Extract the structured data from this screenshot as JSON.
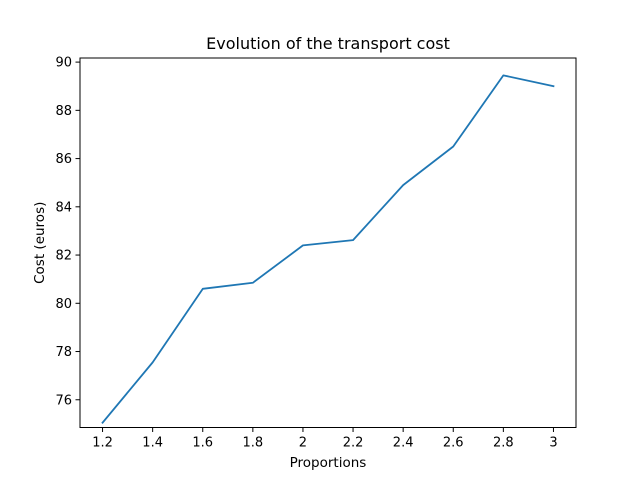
{
  "chart_data": {
    "type": "line",
    "title": "Evolution of the transport cost",
    "xlabel": "Proportions",
    "ylabel": "Cost (euros)",
    "x": [
      1.2,
      1.4,
      1.6,
      1.8,
      2.0,
      2.2,
      2.4,
      2.6,
      2.8,
      3.0
    ],
    "series": [
      {
        "values": [
          75.05,
          77.55,
          80.6,
          80.85,
          82.4,
          82.62,
          84.9,
          86.5,
          89.45,
          89.0
        ],
        "color": "#1f77b4"
      }
    ],
    "xlim": [
      1.11,
      3.09
    ],
    "ylim": [
      74.85,
      90.17
    ],
    "x_ticks": [
      1.2,
      1.4,
      1.6,
      1.8,
      2.0,
      2.2,
      2.4,
      2.6,
      2.8,
      3.0
    ],
    "x_tick_labels": [
      "1.2",
      "1.4",
      "1.6",
      "1.8",
      "2",
      "2.2",
      "2.4",
      "2.6",
      "2.8",
      "3"
    ],
    "y_ticks": [
      76,
      78,
      80,
      82,
      84,
      86,
      88,
      90
    ],
    "y_tick_labels": [
      "76",
      "78",
      "80",
      "82",
      "84",
      "86",
      "88",
      "90"
    ],
    "grid": false,
    "legend": "none"
  }
}
